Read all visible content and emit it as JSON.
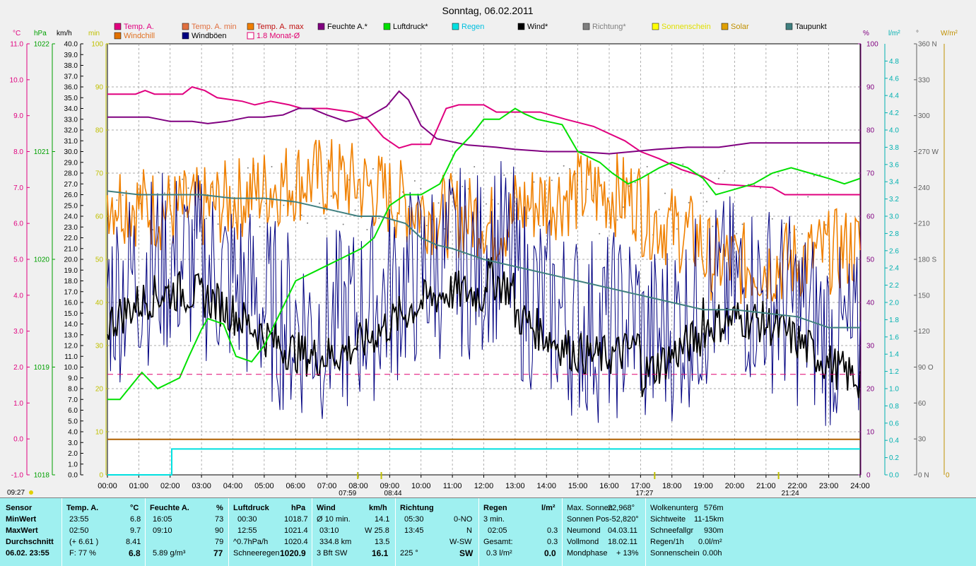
{
  "title": "Sonntag, 06.02.2011",
  "legend_row1": [
    {
      "name": "Temp. A.",
      "color": "#e0007f",
      "box": "#e0007f"
    },
    {
      "name": "Temp. A. min",
      "color": "#e07040",
      "box": "#e07040"
    },
    {
      "name": "Temp. A. max",
      "color": "#c01010",
      "box": "#f07f00"
    },
    {
      "name": "Feuchte A.*",
      "color": "#000000",
      "box": "#800080"
    },
    {
      "name": "Luftdruck*",
      "color": "#000000",
      "box": "#00e000"
    },
    {
      "name": "Regen",
      "color": "#00c0e0",
      "box": "#00e0e0"
    },
    {
      "name": "Wind*",
      "color": "#000000",
      "box": "#000000"
    },
    {
      "name": "Richtung*",
      "color": "#808080",
      "box": "#808080"
    },
    {
      "name": "Sonnenschein",
      "color": "#e0e000",
      "box": "#ffff00"
    },
    {
      "name": "Solar",
      "color": "#c09000",
      "box": "#e0a000"
    },
    {
      "name": "Taupunkt",
      "color": "#000000",
      "box": "#408080"
    }
  ],
  "legend_row2": [
    {
      "name": "Windchill",
      "color": "#e07020",
      "box": "#e07000"
    },
    {
      "name": "Windböen",
      "color": "#000000",
      "box": "#000080"
    },
    {
      "name": "1.8 Monat-Ø",
      "color": "#e00070",
      "box": "#ffffff"
    }
  ],
  "axis_units_left": [
    "°C",
    "hPa",
    "km/h",
    "min"
  ],
  "axis_units_right": [
    "%",
    "l/m²",
    "°",
    "W/m²"
  ],
  "left_labels_time": "09:27",
  "time_labels": [
    "00:00",
    "01:00",
    "02:00",
    "03:00",
    "04:00",
    "05:00",
    "06:00",
    "07:00",
    "08:00",
    "09:00",
    "10:00",
    "11:00",
    "12:00",
    "13:00",
    "14:00",
    "15:00",
    "16:00",
    "17:00",
    "18:00",
    "19:00",
    "20:00",
    "21:00",
    "22:00",
    "23:00",
    "24:00"
  ],
  "sun_markers": [
    "07:59",
    "08:44",
    "17:27",
    "21:24"
  ],
  "chart_data": {
    "type": "line",
    "x_range_hours": [
      0,
      24
    ],
    "axes": {
      "temp_c": {
        "range": [
          -1.0,
          11.0
        ],
        "ticks": [
          "11.0",
          "10.0",
          "9.0",
          "8.0",
          "7.0",
          "6.0",
          "5.0",
          "4.0",
          "3.0",
          "2.0",
          "1.0",
          "0.0",
          "-1.0"
        ]
      },
      "pressure_hpa": {
        "range": [
          1018,
          1022
        ],
        "ticks": [
          "1022",
          "1021",
          "1020",
          "1019",
          "1018"
        ]
      },
      "wind_kmh": {
        "range": [
          0,
          40
        ],
        "ticks": [
          "40.0",
          "39.0",
          "38.0",
          "37.0",
          "36.0",
          "35.0",
          "34.0",
          "33.0",
          "32.0",
          "31.0",
          "30.0",
          "29.0",
          "28.0",
          "27.0",
          "26.0",
          "25.0",
          "24.0",
          "23.0",
          "22.0",
          "21.0",
          "20.0",
          "19.0",
          "18.0",
          "17.0",
          "16.0",
          "15.0",
          "14.0",
          "13.0",
          "12.0",
          "11.0",
          "10.0",
          "9.0",
          "8.0",
          "7.0",
          "6.0",
          "5.0",
          "4.0",
          "3.0",
          "2.0",
          "1.0",
          "0.0"
        ]
      },
      "minutes": {
        "range": [
          0,
          100
        ],
        "ticks": [
          "100",
          "90",
          "80",
          "70",
          "60",
          "50",
          "40",
          "30",
          "20",
          "10",
          "0"
        ]
      },
      "humidity_pct": {
        "range": [
          0,
          100
        ],
        "ticks": [
          "100",
          "90",
          "80",
          "70",
          "60",
          "50",
          "40",
          "30",
          "20",
          "10",
          "0"
        ]
      },
      "rain_lm2": {
        "range": [
          0,
          5
        ],
        "ticks": [
          "4.8",
          "4.6",
          "4.4",
          "4.2",
          "4.0",
          "3.8",
          "3.6",
          "3.4",
          "3.2",
          "3.0",
          "2.8",
          "2.6",
          "2.4",
          "2.2",
          "2.0",
          "1.8",
          "1.6",
          "1.4",
          "1.2",
          "1.0",
          "0.8",
          "0.6",
          "0.4",
          "0.2",
          "0.0"
        ]
      },
      "direction_deg": {
        "range": [
          0,
          360
        ],
        "ticks": [
          "360 N",
          "330",
          "300",
          "270 W",
          "240",
          "210",
          "180 S",
          "150",
          "120",
          "90 O",
          "60",
          "30",
          "0 N"
        ]
      },
      "solar_wm2": {
        "ticks": [
          "0"
        ]
      }
    },
    "series": [
      {
        "name": "Temp. A.",
        "axis": "temp_c",
        "color": "#e0007f",
        "x": [
          0,
          0.9,
          1.2,
          1.5,
          2.4,
          2.7,
          3.1,
          3.5,
          4.3,
          4.7,
          5.2,
          5.8,
          6.2,
          7.0,
          7.8,
          8.3,
          8.8,
          9.3,
          9.7,
          10.3,
          10.8,
          11.2,
          12.0,
          12.4,
          13.8,
          14.6,
          15.5,
          16.5,
          17.0,
          17.6,
          18.3,
          19.0,
          19.4,
          21.2,
          21.6,
          22.6,
          23.2,
          24
        ],
        "y": [
          9.6,
          9.6,
          9.7,
          9.6,
          9.6,
          9.8,
          9.7,
          9.5,
          9.4,
          9.3,
          9.4,
          9.3,
          9.2,
          9.2,
          9.1,
          8.9,
          8.4,
          8.1,
          8.2,
          8.2,
          9.2,
          9.3,
          9.3,
          9.1,
          9.1,
          8.9,
          8.7,
          8.3,
          8.0,
          7.8,
          7.5,
          7.3,
          7.1,
          7.0,
          6.8,
          6.8,
          6.8,
          6.8
        ]
      },
      {
        "name": "Feuchte A.*",
        "axis": "humidity_pct",
        "color": "#800080",
        "x": [
          0,
          0.8,
          1.3,
          2.0,
          2.7,
          3.2,
          3.8,
          4.5,
          5.0,
          5.6,
          6.1,
          6.5,
          7.0,
          7.6,
          8.3,
          8.9,
          9.3,
          9.6,
          10.0,
          10.5,
          11.5,
          12.4,
          13.0,
          14.0,
          15.0,
          16.0,
          17.5,
          18.5,
          19.5,
          20.5,
          21.5,
          22.5,
          24
        ],
        "y": [
          83,
          83,
          83,
          82,
          82,
          81.5,
          82,
          83,
          83,
          83.5,
          85,
          85,
          83.5,
          82,
          83,
          85.5,
          89,
          87,
          81,
          78,
          76.5,
          76,
          75.5,
          75,
          75,
          74.5,
          75.5,
          76,
          76,
          77,
          77,
          77,
          77
        ]
      },
      {
        "name": "Luftdruck*",
        "axis": "pressure_hpa",
        "color": "#00e000",
        "x": [
          0,
          0.4,
          1.1,
          1.6,
          2.3,
          2.6,
          3.0,
          3.2,
          3.7,
          4.1,
          4.6,
          5.0,
          5.5,
          6.0,
          6.7,
          7.4,
          8.1,
          8.5,
          9.0,
          9.5,
          10.0,
          10.6,
          11.1,
          11.6,
          12.0,
          12.5,
          13.0,
          13.3,
          13.7,
          14.5,
          15.0,
          15.7,
          16.1,
          16.6,
          17.0,
          17.6,
          18.0,
          18.5,
          19.0,
          19.4,
          20.0,
          20.6,
          21.2,
          21.8,
          22.4,
          23.0,
          23.5,
          24
        ],
        "y": [
          1018.7,
          1018.7,
          1018.95,
          1018.8,
          1018.9,
          1019.1,
          1019.35,
          1019.45,
          1019.4,
          1019.1,
          1019.05,
          1019.2,
          1019.5,
          1019.8,
          1019.9,
          1020.0,
          1020.1,
          1020.2,
          1020.5,
          1020.6,
          1020.6,
          1020.7,
          1021.0,
          1021.15,
          1021.3,
          1021.3,
          1021.4,
          1021.35,
          1021.3,
          1021.25,
          1021.0,
          1020.9,
          1020.8,
          1020.7,
          1020.75,
          1020.85,
          1020.9,
          1020.85,
          1020.75,
          1020.6,
          1020.65,
          1020.7,
          1020.8,
          1020.85,
          1020.8,
          1020.75,
          1020.7,
          1020.75
        ]
      },
      {
        "name": "Taupunkt",
        "axis": "temp_c",
        "color": "#408080",
        "x": [
          0,
          1,
          2,
          3,
          4,
          5,
          6,
          7,
          8,
          8.7,
          9.5,
          10,
          10.5,
          11,
          12,
          13,
          14,
          15,
          16,
          17,
          18,
          19,
          20,
          21,
          22,
          23,
          24
        ],
        "y": [
          6.9,
          6.8,
          6.8,
          6.8,
          6.7,
          6.7,
          6.6,
          6.4,
          6.2,
          6.2,
          6.0,
          5.6,
          5.4,
          5.3,
          5.0,
          4.8,
          4.6,
          4.4,
          4.2,
          4.0,
          3.8,
          3.6,
          3.6,
          3.5,
          3.4,
          3.1,
          3.1
        ]
      },
      {
        "name": "1.8 Monat-Ø",
        "axis": "temp_c",
        "color": "#e00070",
        "dashed": true,
        "x": [
          0,
          24
        ],
        "y": [
          1.8,
          1.8
        ]
      },
      {
        "name": "Solar",
        "axis": "wind_kmh",
        "color": "#b06000",
        "x": [
          0,
          24
        ],
        "y": [
          3.3,
          3.3
        ]
      },
      {
        "name": "Regen",
        "axis": "rain_lm2",
        "color": "#00e0e0",
        "x": [
          0,
          2.05,
          2.05,
          24
        ],
        "y": [
          0,
          0,
          0.3,
          0.3
        ]
      }
    ]
  },
  "stats": {
    "sensor": {
      "header": "Sensor",
      "rows": [
        "MinWert",
        "MaxWert",
        "Durchschnitt",
        "06.02. 23:55"
      ]
    },
    "temp": {
      "header": "Temp. A.",
      "unit": "°C",
      "rows": [
        [
          "23:55",
          "6.8"
        ],
        [
          "02:50",
          "9.7"
        ],
        [
          "(+ 6.61 )",
          "8.41"
        ],
        [
          "F: 77 %",
          "6.8"
        ]
      ]
    },
    "humidity": {
      "header": "Feuchte A.",
      "unit": "%",
      "rows": [
        [
          "16:05",
          "73"
        ],
        [
          "09:10",
          "90"
        ],
        [
          "",
          "79"
        ],
        [
          "5.89 g/m³",
          "77"
        ]
      ]
    },
    "pressure": {
      "header": "Luftdruck",
      "unit": "hPa",
      "rows": [
        [
          "00:30",
          "1018.7"
        ],
        [
          "12:55",
          "1021.4"
        ],
        [
          "^0.7hPa/h",
          "1020.4"
        ],
        [
          "Schneeregen",
          "1020.9"
        ]
      ]
    },
    "wind": {
      "header": "Wind",
      "unit": "km/h",
      "rows": [
        [
          "Ø 10 min.",
          "14.1"
        ],
        [
          "03:10",
          "W 25.8"
        ],
        [
          "334.8 km",
          "13.5"
        ],
        [
          "3 Bft SW",
          "16.1"
        ]
      ]
    },
    "direction": {
      "header": "Richtung",
      "rows": [
        [
          "05:30",
          "0-NO"
        ],
        [
          "13:45",
          "N"
        ],
        [
          "",
          "W-SW"
        ],
        [
          "225 °",
          "SW"
        ]
      ]
    },
    "rain": {
      "header": "Regen",
      "unit": "l/m²",
      "rows": [
        [
          "3 min.",
          ""
        ],
        [
          "02:05",
          "0.3"
        ],
        [
          "Gesamt:",
          "0.3"
        ],
        [
          "0.3 l/m²",
          "0.0"
        ]
      ]
    },
    "astro": {
      "rows": [
        [
          "Max. Sonnen",
          "22,968°"
        ],
        [
          "Sonnen Pos",
          "-52,820°"
        ],
        [
          "Neumond",
          "04.03.11"
        ],
        [
          "Vollmond",
          "18.02.11"
        ],
        [
          "Mondphase",
          "+ 13%"
        ]
      ]
    },
    "clouds": {
      "rows": [
        [
          "Wolkenunterg",
          "576m"
        ],
        [
          "Sichtweite",
          "11-15km"
        ],
        [
          "Schneefallgr",
          "930m"
        ],
        [
          "Regen/1h",
          "0.0l/m²"
        ],
        [
          "Sonnenschein",
          "0.00h"
        ]
      ]
    }
  }
}
